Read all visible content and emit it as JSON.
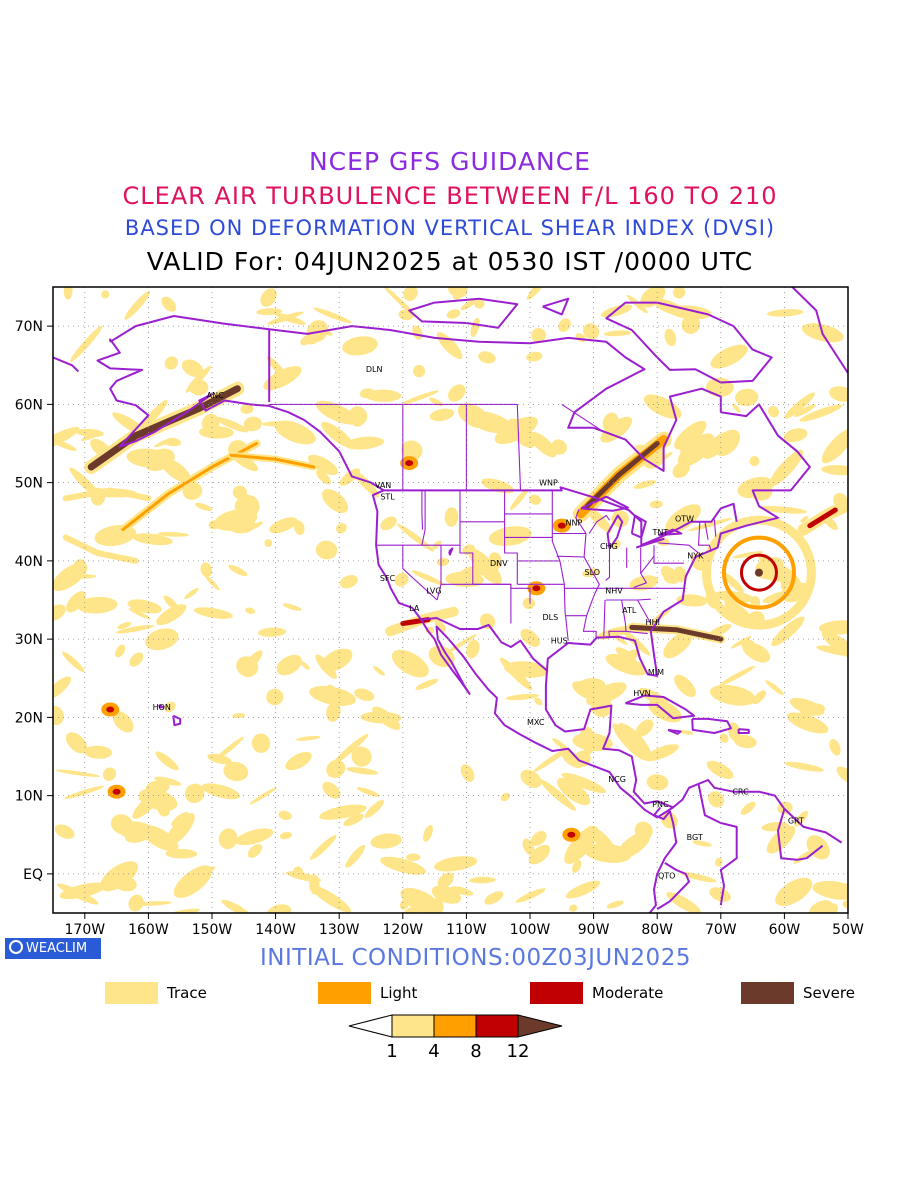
{
  "header": {
    "line1": "NCEP GFS GUIDANCE",
    "line2": "CLEAR AIR TURBULENCE BETWEEN F/L 160 TO 210",
    "line3": "BASED ON DEFORMATION VERTICAL SHEAR INDEX (DVSI)",
    "line4": "VALID For: 04JUN2025 at 0530 IST /0000 UTC"
  },
  "map": {
    "lon_range": [
      -175,
      -50
    ],
    "lat_range": [
      -5,
      75
    ],
    "lat_ticks": [
      "EQ",
      "10N",
      "20N",
      "30N",
      "40N",
      "50N",
      "60N",
      "70N"
    ],
    "lon_ticks": [
      "170W",
      "160W",
      "150W",
      "140W",
      "130W",
      "120W",
      "110W",
      "100W",
      "90W",
      "80W",
      "70W",
      "60W",
      "50W"
    ],
    "grid": true,
    "stations": [
      {
        "code": "DLN",
        "lon": -124.5,
        "lat": 64.5
      },
      {
        "code": "ANC",
        "lon": -149.5,
        "lat": 61.2
      },
      {
        "code": "VAN",
        "lon": -123.1,
        "lat": 49.7
      },
      {
        "code": "STL",
        "lon": -122.4,
        "lat": 48.2
      },
      {
        "code": "WNP",
        "lon": -97.1,
        "lat": 50.0
      },
      {
        "code": "NNP",
        "lon": -93.1,
        "lat": 44.9
      },
      {
        "code": "OTW",
        "lon": -75.7,
        "lat": 45.4
      },
      {
        "code": "TNT",
        "lon": -79.5,
        "lat": 43.7
      },
      {
        "code": "CHG",
        "lon": -87.6,
        "lat": 41.9
      },
      {
        "code": "NYK",
        "lon": -74.0,
        "lat": 40.7
      },
      {
        "code": "DNV",
        "lon": -104.9,
        "lat": 39.7
      },
      {
        "code": "SLO",
        "lon": -90.2,
        "lat": 38.6
      },
      {
        "code": "SFC",
        "lon": -122.4,
        "lat": 37.8
      },
      {
        "code": "LVG",
        "lon": -115.1,
        "lat": 36.2
      },
      {
        "code": "NHV",
        "lon": -86.8,
        "lat": 36.2
      },
      {
        "code": "LA",
        "lon": -118.2,
        "lat": 34.0
      },
      {
        "code": "ATL",
        "lon": -84.4,
        "lat": 33.7
      },
      {
        "code": "DLS",
        "lon": -96.8,
        "lat": 32.8
      },
      {
        "code": "HHI",
        "lon": -80.7,
        "lat": 32.2
      },
      {
        "code": "HUS",
        "lon": -95.4,
        "lat": 29.8
      },
      {
        "code": "MIM",
        "lon": -80.2,
        "lat": 25.8
      },
      {
        "code": "HVN",
        "lon": -82.4,
        "lat": 23.1
      },
      {
        "code": "HON",
        "lon": -157.9,
        "lat": 21.3
      },
      {
        "code": "MXC",
        "lon": -99.1,
        "lat": 19.4
      },
      {
        "code": "NCG",
        "lon": -86.3,
        "lat": 12.1
      },
      {
        "code": "CRC",
        "lon": -66.9,
        "lat": 10.5
      },
      {
        "code": "PNC",
        "lon": -79.5,
        "lat": 8.9
      },
      {
        "code": "GRT",
        "lon": -58.2,
        "lat": 6.8
      },
      {
        "code": "BGT",
        "lon": -74.1,
        "lat": 4.7
      },
      {
        "code": "QTO",
        "lon": -78.5,
        "lat": -0.2
      }
    ]
  },
  "footer": {
    "badge": "WEACLIM",
    "initial": "INITIAL CONDITIONS:00Z03JUN2025"
  },
  "legend": [
    {
      "label": "Trace",
      "color": "#ffe58a"
    },
    {
      "label": "Light",
      "color": "#ffa000"
    },
    {
      "label": "Moderate",
      "color": "#c00000"
    },
    {
      "label": "Severe",
      "color": "#6b3a2a"
    }
  ],
  "colorbar": {
    "ticks": [
      "1",
      "4",
      "8",
      "12"
    ],
    "colors": [
      "#ffffff",
      "#ffe58a",
      "#ffa000",
      "#c00000",
      "#6b3a2a"
    ]
  },
  "colors": {
    "coast": "#9b1fd0",
    "trace": "#ffe58a",
    "light": "#ffa000",
    "moderate": "#c00000",
    "severe": "#6b3a2a"
  }
}
